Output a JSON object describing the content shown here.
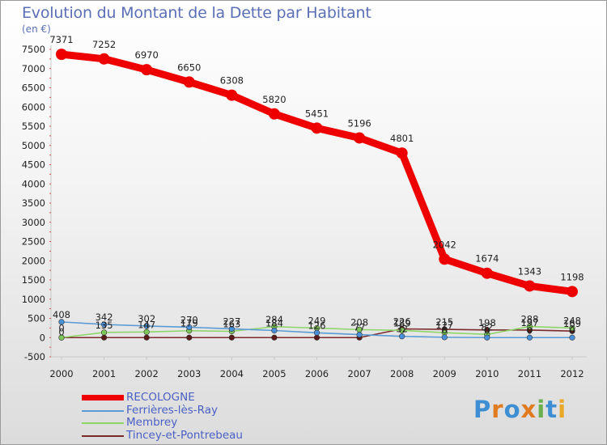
{
  "title": "Evolution du Montant de la Dette par Habitant",
  "unit_label": "(en €)",
  "brand": {
    "text": "Proxiti",
    "colors": [
      "#3d8ed3",
      "#e07b20",
      "#3d8ed3",
      "#e07b20",
      "#6ab04c",
      "#3d8ed3",
      "#e9a825"
    ]
  },
  "chart_data": {
    "type": "line",
    "title": "Evolution du Montant de la Dette par Habitant",
    "ylabel": "(en €)",
    "xlabel": "",
    "x": [
      "2000",
      "2001",
      "2002",
      "2003",
      "2004",
      "2005",
      "2006",
      "2007",
      "2008",
      "2009",
      "2010",
      "2011",
      "2012"
    ],
    "ylim": [
      -500,
      7500
    ],
    "yticks": [
      "-500",
      "0",
      "500",
      "1000",
      "1500",
      "2000",
      "2500",
      "3000",
      "3500",
      "4000",
      "4500",
      "5000",
      "5500",
      "6000",
      "6500",
      "7000",
      "7500"
    ],
    "grid": false,
    "legend_position": "bottom-left",
    "series": [
      {
        "name": "RECOLOGNE",
        "color": "#ee0000",
        "thick": true,
        "values": [
          7371,
          7252,
          6970,
          6650,
          6308,
          5820,
          5451,
          5196,
          4801,
          2042,
          1674,
          1343,
          1198
        ],
        "labels": [
          "7371",
          "7252",
          "6970",
          "6650",
          "6308",
          "5820",
          "5451",
          "5196",
          "4801",
          "2042",
          "1674",
          "1343",
          "1198"
        ]
      },
      {
        "name": "Ferrières-lès-Ray",
        "color": "#5b9bd5",
        "marker": "#4a90d9",
        "values": [
          408,
          342,
          302,
          270,
          227,
          184,
          126,
          77,
          32,
          8,
          0,
          0,
          0
        ],
        "labels": [
          "408",
          "342",
          "302",
          "270",
          "227",
          "184",
          "126",
          "77",
          "32",
          "8",
          "0",
          "0",
          "0"
        ]
      },
      {
        "name": "Membrey",
        "color": "#8ed66a",
        "marker": "#7ec85a",
        "values": [
          0,
          135,
          147,
          179,
          163,
          284,
          249,
          208,
          189,
          127,
          82,
          288,
          248
        ],
        "labels": [
          "0",
          "135",
          "147",
          "179",
          "163",
          "284",
          "249",
          "208",
          "189",
          "127",
          "82",
          "288",
          "248"
        ]
      },
      {
        "name": "Tincey-et-Pontrebeau",
        "color": "#7a2a2a",
        "marker": "#5a1a1a",
        "values": [
          0,
          0,
          0,
          0,
          0,
          0,
          0,
          0,
          226,
          215,
          198,
          197,
          169
        ],
        "labels": [
          "0",
          "",
          "",
          "",
          "",
          "",
          "",
          "",
          "226",
          "215",
          "198",
          "197",
          "169"
        ]
      }
    ]
  }
}
